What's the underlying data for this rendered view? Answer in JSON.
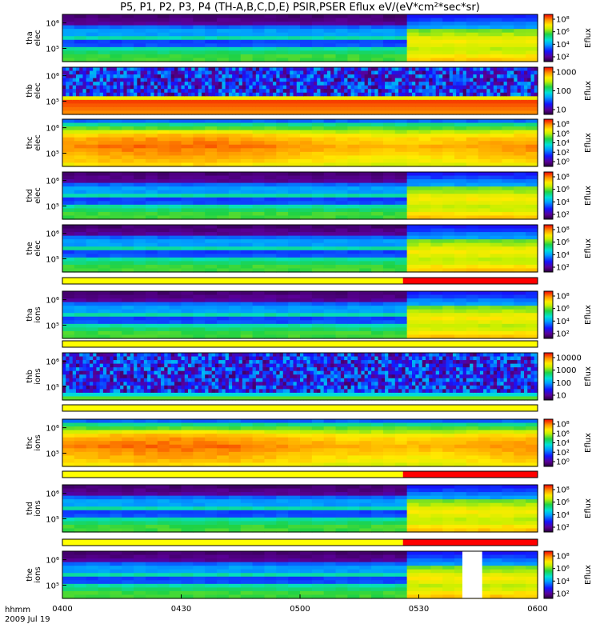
{
  "chart_data": {
    "type": "heatmap",
    "title": "P5, P1, P2, P3, P4 (TH-A,B,C,D,E) PSIR,PSER Eflux eV/(eV*cm²*sec*sr)",
    "x_axis": {
      "ticks": [
        "0400",
        "0430",
        "0500",
        "0530",
        "0600"
      ],
      "range": [
        "04:00",
        "06:00"
      ],
      "label": "hhmm",
      "date": "2009 Jul 19"
    },
    "y_scale": "log",
    "colorbar_label": "Eflux",
    "panels": [
      {
        "id": "tha_elec",
        "ylabel": [
          "tha",
          "elec"
        ],
        "yticks": [
          "10⁶",
          "10⁵"
        ],
        "cb_ticks": [
          "10⁸",
          "10⁶",
          "10⁴",
          "10²"
        ],
        "cb_range": [
          10,
          100000000
        ],
        "transition_min": 87,
        "pre": "low",
        "post": "high"
      },
      {
        "id": "thb_elec",
        "ylabel": [
          "thb",
          "elec"
        ],
        "yticks": [
          "10⁶",
          "10⁵"
        ],
        "cb_ticks": [
          "1000",
          "100",
          "10"
        ],
        "cb_range": [
          3,
          8000
        ],
        "transition_min": null,
        "pre": "noise_red",
        "post": "noise_red"
      },
      {
        "id": "thc_elec",
        "ylabel": [
          "thc",
          "elec"
        ],
        "yticks": [
          "10⁶",
          "10⁵"
        ],
        "cb_ticks": [
          "10⁸",
          "10⁶",
          "10⁴",
          "10²",
          "10⁰"
        ],
        "cb_range": [
          1,
          100000000
        ],
        "transition_min": null,
        "pre": "warm",
        "post": "warm"
      },
      {
        "id": "thd_elec",
        "ylabel": [
          "thd",
          "elec"
        ],
        "yticks": [
          "10⁶",
          "10⁵"
        ],
        "cb_ticks": [
          "10⁸",
          "10⁶",
          "10⁴",
          "10²"
        ],
        "cb_range": [
          10,
          100000000
        ],
        "transition_min": 87,
        "pre": "low",
        "post": "high"
      },
      {
        "id": "the_elec",
        "ylabel": [
          "the",
          "elec"
        ],
        "yticks": [
          "10⁶",
          "10⁵"
        ],
        "cb_ticks": [
          "10⁸",
          "10⁶",
          "10⁴",
          "10²"
        ],
        "cb_range": [
          10,
          100000000
        ],
        "transition_min": 87,
        "pre": "low",
        "post": "high"
      },
      {
        "id": "tha_ions",
        "ylabel": [
          "tha",
          "ions"
        ],
        "yticks": [
          "10⁶",
          "10⁵"
        ],
        "cb_ticks": [
          "10⁸",
          "10⁶",
          "10⁴",
          "10²"
        ],
        "cb_range": [
          10,
          100000000
        ],
        "transition_min": 87,
        "pre": "low",
        "post": "high"
      },
      {
        "id": "thb_ions",
        "ylabel": [
          "thb",
          "ions"
        ],
        "yticks": [
          "10⁶",
          "10⁵"
        ],
        "cb_ticks": [
          "10000",
          "1000",
          "100",
          "10"
        ],
        "cb_range": [
          3,
          20000
        ],
        "transition_min": null,
        "pre": "noise_blue",
        "post": "noise_blue"
      },
      {
        "id": "thc_ions",
        "ylabel": [
          "thc",
          "ions"
        ],
        "yticks": [
          "10⁶",
          "10⁵"
        ],
        "cb_ticks": [
          "10⁸",
          "10⁶",
          "10⁴",
          "10²",
          "10⁰"
        ],
        "cb_range": [
          1,
          100000000
        ],
        "transition_min": null,
        "pre": "warm",
        "post": "warm"
      },
      {
        "id": "thd_ions",
        "ylabel": [
          "thd",
          "ions"
        ],
        "yticks": [
          "10⁶",
          "10⁵"
        ],
        "cb_ticks": [
          "10⁸",
          "10⁶",
          "10⁴",
          "10²"
        ],
        "cb_range": [
          10,
          100000000
        ],
        "transition_min": 87,
        "pre": "low",
        "post": "high"
      },
      {
        "id": "the_ions",
        "ylabel": [
          "the",
          "ions"
        ],
        "yticks": [
          "10⁶",
          "10⁵"
        ],
        "cb_ticks": [
          "10⁸",
          "10⁶",
          "10⁴",
          "10²"
        ],
        "cb_range": [
          10,
          100000000
        ],
        "transition_min": 87,
        "pre": "low",
        "post": "high",
        "data_gap_min": [
          101,
          106
        ]
      }
    ],
    "mode_bars": [
      {
        "after_panel": "the_elec",
        "segments": [
          {
            "color": "#ffff00",
            "start_min": 0,
            "end_min": 86
          },
          {
            "color": "#ff0000",
            "start_min": 86,
            "end_min": 120
          }
        ]
      },
      {
        "after_panel": "tha_ions",
        "segments": [
          {
            "color": "#ffff00",
            "start_min": 0,
            "end_min": 120
          }
        ]
      },
      {
        "after_panel": "thb_ions",
        "segments": [
          {
            "color": "#ffff00",
            "start_min": 0,
            "end_min": 120
          }
        ]
      },
      {
        "after_panel": "thc_ions",
        "segments": [
          {
            "color": "#ffff00",
            "start_min": 0,
            "end_min": 86
          },
          {
            "color": "#ff0000",
            "start_min": 86,
            "end_min": 120
          }
        ]
      },
      {
        "after_panel": "thd_ions",
        "segments": [
          {
            "color": "#ffff00",
            "start_min": 0,
            "end_min": 86
          },
          {
            "color": "#ff0000",
            "start_min": 86,
            "end_min": 120
          }
        ]
      }
    ]
  }
}
